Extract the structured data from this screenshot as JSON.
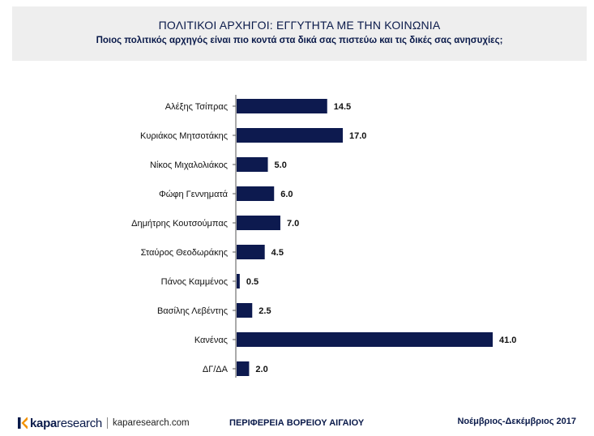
{
  "header": {
    "title": "ΠΟΛΙΤΙΚΟΙ ΑΡΧΗΓΟΙ: ΕΓΓΥΤΗΤΑ ΜΕ ΤΗΝ ΚΟΙΝΩΝΙΑ",
    "subtitle": "Ποιος πολιτικός αρχηγός είναι πιο κοντά στα δικά σας πιστεύω και τις δικές σας ανησυχίες;"
  },
  "chart_data": {
    "type": "bar",
    "orientation": "horizontal",
    "categories": [
      "Αλέξης Τσίπρας",
      "Κυριάκος Μητσοτάκης",
      "Νίκος Μιχαλολιάκος",
      "Φώφη Γεννηματά",
      "Δημήτρης Κουτσούμπας",
      "Σταύρος Θεοδωράκης",
      "Πάνος Καμμένος",
      "Βασίλης Λεβέντης",
      "Κανένας",
      "ΔΓ/ΔΑ"
    ],
    "values": [
      14.5,
      17.0,
      5.0,
      6.0,
      7.0,
      4.5,
      0.5,
      2.5,
      41.0,
      2.0
    ],
    "value_labels": [
      "14.5",
      "17.0",
      "5.0",
      "6.0",
      "7.0",
      "4.5",
      "0.5",
      "2.5",
      "41.0",
      "2.0"
    ],
    "bar_color": "#0d1a4f",
    "xlim": [
      0,
      41.0
    ],
    "grid": false,
    "legend": "none"
  },
  "footer": {
    "logo_brand": "kapa",
    "logo_research": "research",
    "logo_url": "kaparesearch.com",
    "region": "ΠΕΡΙΦΕΡΕΙΑ ΒΟΡΕΙΟΥ ΑΙΓΑΙΟΥ",
    "date": "Νοέμβριος-Δεκέμβριος 2017"
  },
  "colors": {
    "brand_navy": "#0a1a4a",
    "header_bg": "#eeeeee",
    "logo_orange": "#f39200"
  }
}
